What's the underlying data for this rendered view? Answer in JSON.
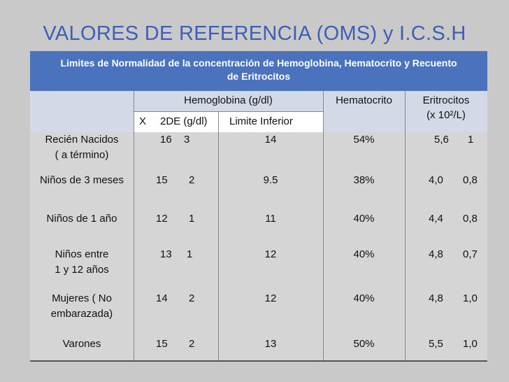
{
  "title": "VALORES DE REFERENCIA (OMS) y I.C.S.H",
  "header": {
    "line1": "Limites de Normalidad de la concentración de Hemoglobina, Hematocrito y Recuento",
    "line2": "de Eritrocitos"
  },
  "columns": {
    "hemoglobina": "Hemoglobina (g/dl)",
    "hematocrito": "Hematocrito",
    "eritrocitos_1": "Eritrocitos",
    "eritrocitos_2": "(x 10²/L)",
    "x": "X",
    "de": "2DE (g/dl)",
    "limite": "Limite Inferior"
  },
  "rows": [
    {
      "label1": "Recién Nacidos",
      "label2": "( a término)",
      "x": "16",
      "de": "3",
      "lim": "14",
      "hct": "54%",
      "eri": "5,6",
      "eri_de": "1"
    },
    {
      "label1": "Niños de 3 meses",
      "label2": "",
      "x": "15",
      "de": "2",
      "lim": "9.5",
      "hct": "38%",
      "eri": "4,0",
      "eri_de": "0,8"
    },
    {
      "label1": "Niños de 1 año",
      "label2": "",
      "x": "12",
      "de": "1",
      "lim": "11",
      "hct": "40%",
      "eri": "4,4",
      "eri_de": "0,8"
    },
    {
      "label1": "Niños entre",
      "label2": "1 y 12 años",
      "x": "13",
      "de": "1",
      "lim": "12",
      "hct": "40%",
      "eri": "4,8",
      "eri_de": "0,7"
    },
    {
      "label1": "Mujeres  ( No",
      "label2": "embarazada)",
      "x": "14",
      "de": "2",
      "lim": "12",
      "hct": "40%",
      "eri": "4,8",
      "eri_de": "1,0"
    },
    {
      "label1": "Varones",
      "label2": "",
      "x": "15",
      "de": "2",
      "lim": "13",
      "hct": "50%",
      "eri": "5,5",
      "eri_de": "1,0"
    }
  ]
}
